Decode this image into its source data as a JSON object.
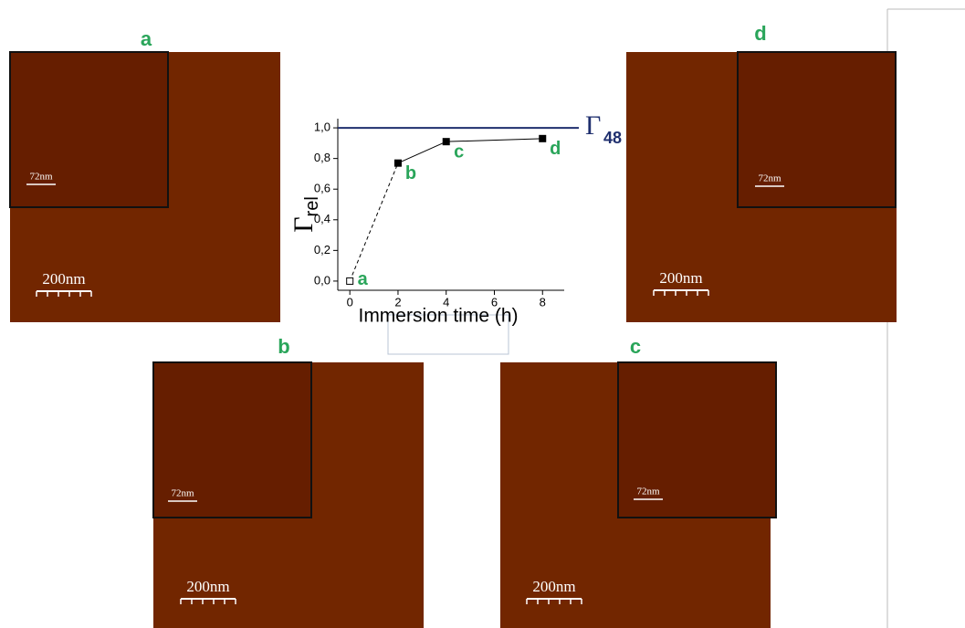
{
  "panels": [
    {
      "label": "a",
      "scale_bar": "200nm",
      "inset_scale_bar": "72nm"
    },
    {
      "label": "b",
      "scale_bar": "200nm",
      "inset_scale_bar": "72nm"
    },
    {
      "label": "c",
      "scale_bar": "200nm",
      "inset_scale_bar": "72nm"
    },
    {
      "label": "d",
      "scale_bar": "200nm",
      "inset_scale_bar": "72nm"
    }
  ],
  "chart_data": {
    "type": "line",
    "x": [
      0,
      2,
      4,
      8
    ],
    "values": [
      0,
      0.77,
      0.91,
      0.93
    ],
    "point_labels": [
      "a",
      "b",
      "c",
      "d"
    ],
    "x_label": "Immersion time (h)",
    "y_label": "Γ",
    "y_label_subscript": "rel",
    "xlim": [
      -0.5,
      8.9
    ],
    "ylim": [
      -0.06,
      1.06
    ],
    "xticks": [
      0,
      2,
      4,
      6,
      8
    ],
    "yticks": [
      {
        "value": 0,
        "label": "0,0"
      },
      {
        "value": 0.2,
        "label": "0,2"
      },
      {
        "value": 0.4,
        "label": "0,4"
      },
      {
        "value": 0.6,
        "label": "0,6"
      },
      {
        "value": 0.8,
        "label": "0,8"
      },
      {
        "value": 1.0,
        "label": "1,0"
      }
    ],
    "color": "#000000",
    "label_color": "#2aa55a",
    "reference_line": {
      "value": 1.0,
      "label": "Γ",
      "subscript": "48",
      "color": "#1f2f6e"
    }
  }
}
